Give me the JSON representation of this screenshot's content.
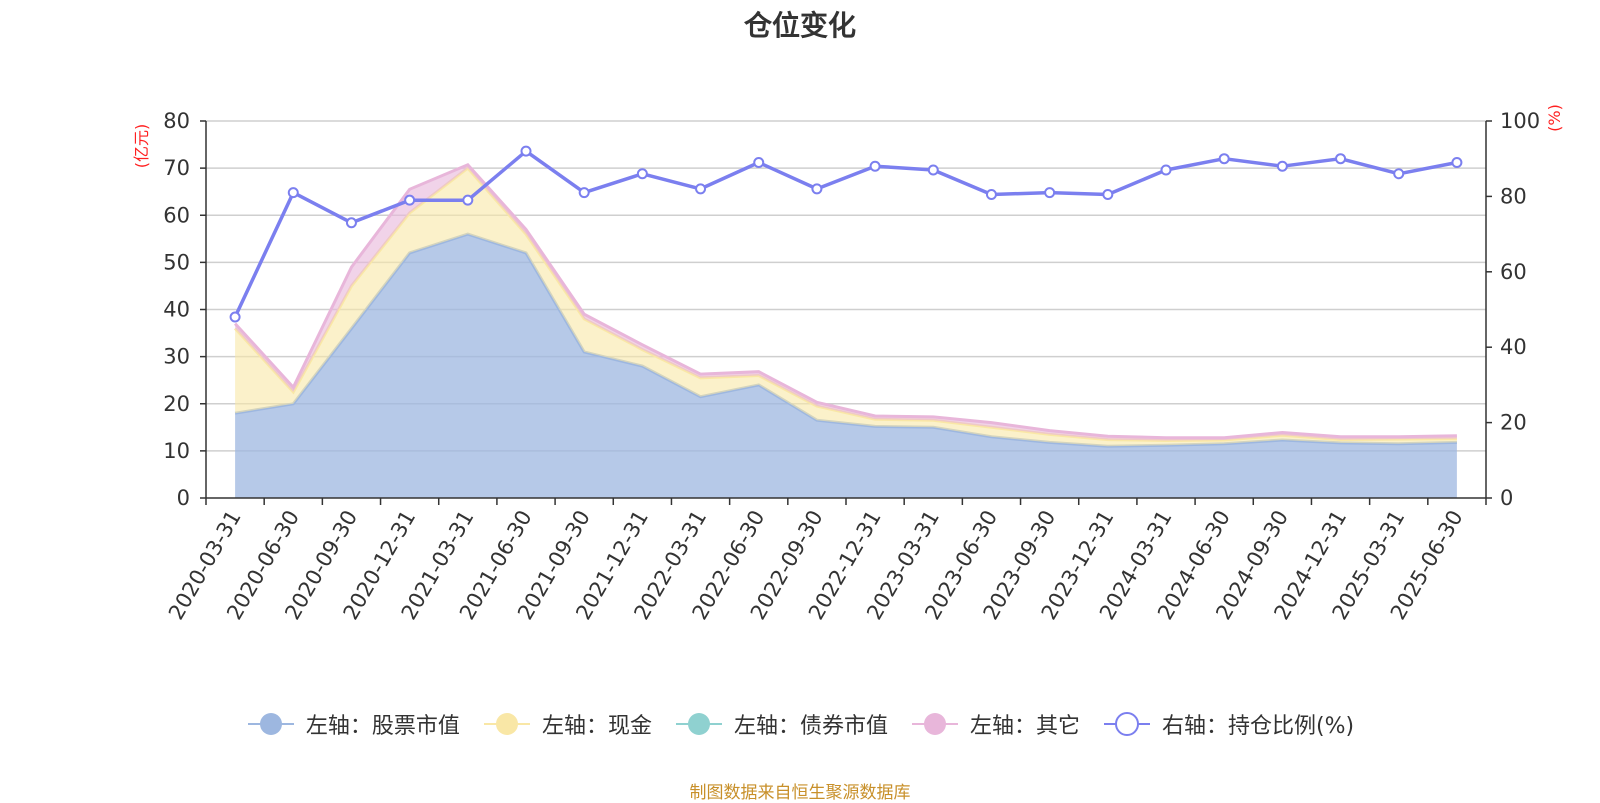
{
  "title": "仓位变化",
  "left_axis_unit": "(亿元)",
  "right_axis_unit": "(%)",
  "source_note": "制图数据来自恒生聚源数据库",
  "legend": [
    {
      "label": "左轴：股票市值",
      "color": "#9db7e0",
      "marker": "filled-circle"
    },
    {
      "label": "左轴：现金",
      "color": "#f9e7a6",
      "marker": "filled-circle"
    },
    {
      "label": "左轴：债券市值",
      "color": "#8fd1d0",
      "marker": "filled-circle"
    },
    {
      "label": "左轴：其它",
      "color": "#e8b6da",
      "marker": "filled-circle"
    },
    {
      "label": "右轴：持仓比例(%)",
      "color": "#7b7fef",
      "marker": "hollow-circle"
    }
  ],
  "chart_data": {
    "type": "area",
    "categories": [
      "2020-03-31",
      "2020-06-30",
      "2020-09-30",
      "2020-12-31",
      "2021-03-31",
      "2021-06-30",
      "2021-09-30",
      "2021-12-31",
      "2022-03-31",
      "2022-06-30",
      "2022-09-30",
      "2022-12-31",
      "2023-03-31",
      "2023-06-30",
      "2023-09-30",
      "2023-12-31",
      "2024-03-31",
      "2024-06-30",
      "2024-09-30",
      "2024-12-31",
      "2025-03-31",
      "2025-06-30"
    ],
    "left_axis": {
      "ylim": [
        0,
        80
      ],
      "ticks": [
        0,
        10,
        20,
        30,
        40,
        50,
        60,
        70,
        80
      ]
    },
    "right_axis": {
      "ylim": [
        0,
        100
      ],
      "ticks": [
        0,
        20,
        40,
        60,
        80,
        100
      ]
    },
    "grid": true,
    "legend_position": "bottom",
    "stacked_series": [
      {
        "name": "左轴：股票市值",
        "color": "#9db7e0",
        "values": [
          18,
          20,
          36,
          52,
          56,
          52,
          31,
          28,
          21.5,
          24,
          16.5,
          15.2,
          15,
          13,
          11.8,
          11,
          11.2,
          11.5,
          12.3,
          11.7,
          11.5,
          11.8
        ]
      },
      {
        "name": "左轴：现金",
        "color": "#f9e7a6",
        "values": [
          18,
          2.5,
          9,
          8.5,
          14,
          4,
          7,
          3.5,
          4,
          2,
          3,
          1.5,
          1.5,
          2,
          1.7,
          1.4,
          1,
          0.8,
          1,
          0.7,
          1,
          0.8
        ]
      },
      {
        "name": "左轴：债券市值",
        "color": "#8fd1d0",
        "values": [
          0,
          0,
          0,
          0,
          0,
          0,
          0,
          0,
          0,
          0,
          0,
          0,
          0,
          0,
          0,
          0,
          0,
          0,
          0,
          0,
          0,
          0
        ]
      },
      {
        "name": "左轴：其它",
        "color": "#e8b6da",
        "values": [
          1,
          1,
          4,
          5,
          0.7,
          1,
          1,
          1,
          0.8,
          0.8,
          0.8,
          0.7,
          0.7,
          1,
          0.8,
          0.7,
          0.6,
          0.5,
          0.6,
          0.6,
          0.5,
          0.6
        ]
      }
    ],
    "line_series": {
      "name": "右轴：持仓比例(%)",
      "color": "#7b7fef",
      "values": [
        48,
        81,
        73,
        79,
        79,
        92,
        81,
        86,
        82,
        89,
        82,
        88,
        87,
        80.5,
        81,
        80.5,
        87,
        90,
        88,
        90,
        86,
        89
      ]
    }
  }
}
